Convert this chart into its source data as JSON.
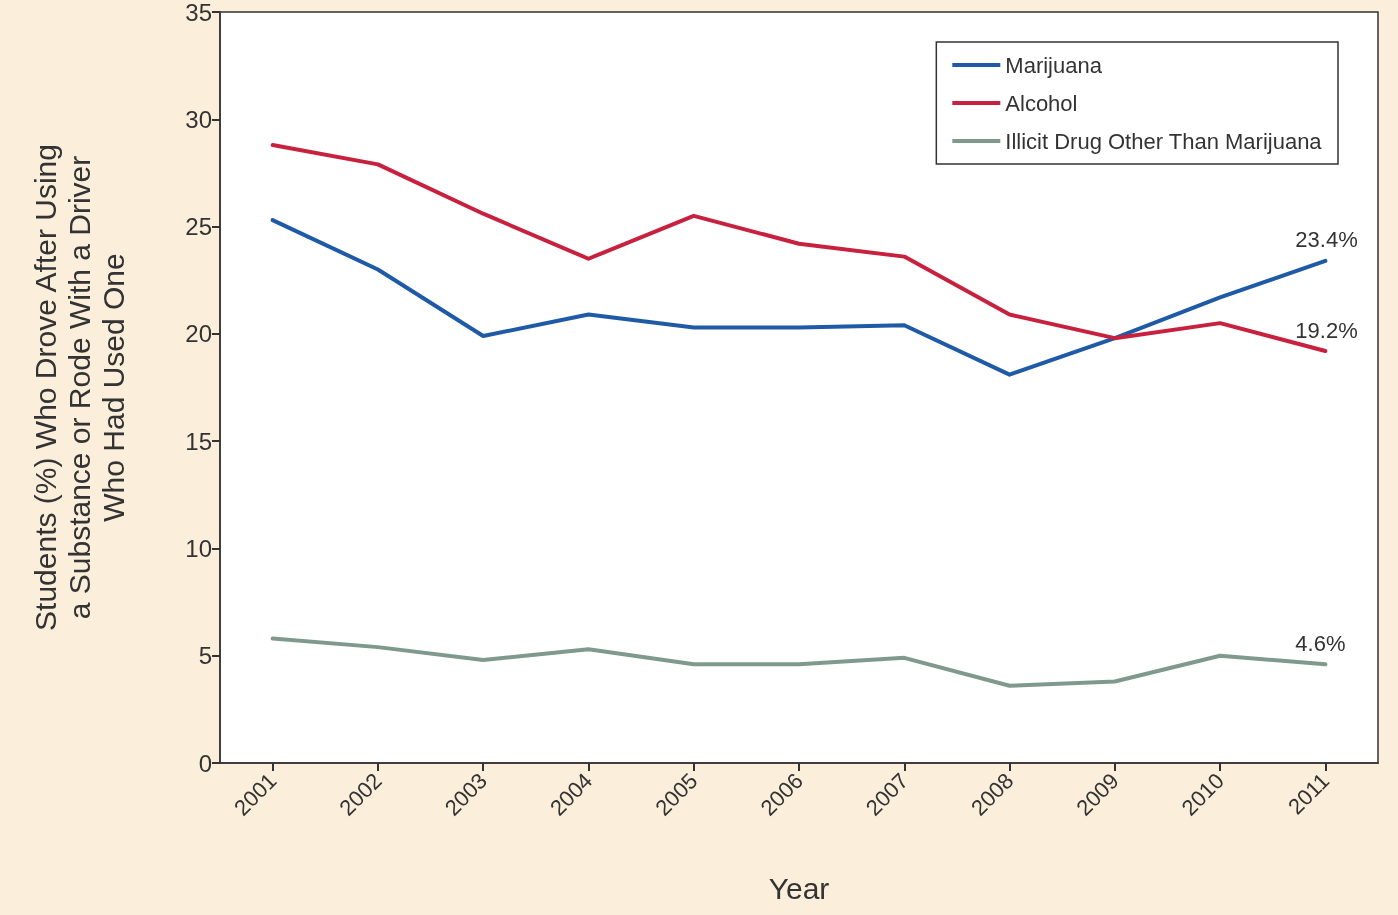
{
  "chart_data": {
    "type": "line",
    "categories": [
      "2001",
      "2002",
      "2003",
      "2004",
      "2005",
      "2006",
      "2007",
      "2008",
      "2009",
      "2010",
      "2011"
    ],
    "xlabel": "Year",
    "ylabel": "Students (%) Who Drove After Using\na Substance or Rode With a Driver\nWho Had Used One",
    "ylim": [
      0,
      35
    ],
    "yticks": [
      0,
      5,
      10,
      15,
      20,
      25,
      30,
      35
    ],
    "grid": false,
    "legend": "top right",
    "marker": "none",
    "line_style": "solid",
    "series": [
      {
        "name": "Marijuana",
        "color": "#1f5aa6",
        "values": [
          25.3,
          23.0,
          19.9,
          20.9,
          20.3,
          20.3,
          20.4,
          18.1,
          19.8,
          21.7,
          23.4
        ],
        "value_labels": [
          null,
          null,
          null,
          null,
          null,
          null,
          null,
          null,
          null,
          null,
          "23.4%"
        ]
      },
      {
        "name": "Alcohol",
        "color": "#c8203f",
        "values": [
          28.8,
          27.9,
          25.6,
          23.5,
          25.5,
          24.2,
          23.6,
          20.9,
          19.8,
          20.5,
          19.2
        ],
        "value_labels": [
          null,
          null,
          null,
          null,
          null,
          null,
          null,
          null,
          null,
          null,
          "19.2%"
        ]
      },
      {
        "name": "Illicit Drug Other Than Marijuana",
        "color": "#7f9a8c",
        "values": [
          5.8,
          5.4,
          4.8,
          5.3,
          4.6,
          4.6,
          4.9,
          3.6,
          3.8,
          5.0,
          4.6
        ],
        "value_labels": [
          null,
          null,
          null,
          null,
          null,
          null,
          null,
          null,
          null,
          null,
          "4.6%"
        ]
      }
    ]
  }
}
